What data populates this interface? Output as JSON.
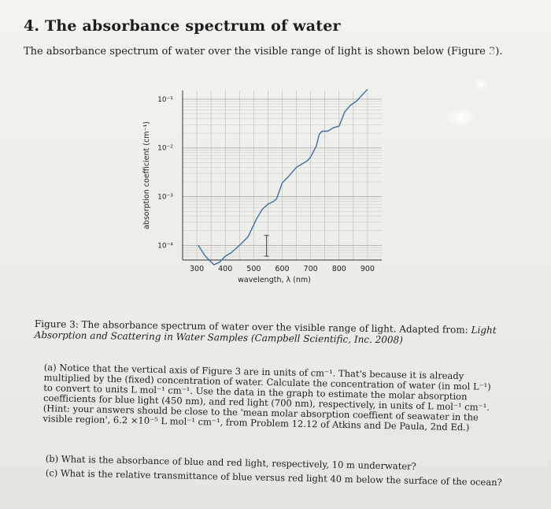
{
  "question": {
    "heading": "4. The absorbance spectrum of water",
    "intro": "The absorbance spectrum of water over the visible range of light is shown below (Figure 3)."
  },
  "chart_data": {
    "type": "line",
    "xlabel": "wavelength, λ (nm)",
    "ylabel": "absorption coefficient (cm⁻¹)",
    "yscale": "log",
    "xlim": [
      250,
      950
    ],
    "ylim": [
      5e-05,
      0.15
    ],
    "x_ticks": [
      300,
      400,
      500,
      600,
      700,
      800,
      900
    ],
    "x_tick_labels": [
      "300",
      "400",
      "500",
      "600",
      "700",
      "800",
      "900"
    ],
    "y_ticks": [
      0.0001,
      0.001,
      0.01,
      0.1
    ],
    "y_tick_labels": [
      "10⁻⁴",
      "10⁻³",
      "10⁻²",
      "10⁻¹"
    ],
    "grid": true,
    "series": [
      {
        "color": "#3d6fa0",
        "x": [
          305,
          330,
          360,
          380,
          400,
          420,
          450,
          480,
          510,
          530,
          550,
          570,
          580,
          600,
          620,
          650,
          690,
          700,
          720,
          730,
          740,
          760,
          780,
          800,
          820,
          840,
          860,
          900
        ],
        "y": [
          0.0001,
          6e-05,
          4e-05,
          4.5e-05,
          6e-05,
          7e-05,
          0.0001,
          0.00015,
          0.00035,
          0.00055,
          0.0007,
          0.0008,
          0.0009,
          0.0019,
          0.0025,
          0.004,
          0.0055,
          0.0065,
          0.011,
          0.019,
          0.022,
          0.022,
          0.026,
          0.028,
          0.055,
          0.075,
          0.09,
          0.16
        ]
      }
    ],
    "error_bar": {
      "x": 545,
      "y": 0.0001,
      "ylow": 6e-05,
      "yhigh": 0.00016
    }
  },
  "figure": {
    "caption_lead": "Figure 3: The absorbance spectrum of water over the visible range of light. Adapted from: ",
    "caption_source": "Light Absorption and Scattering in Water Samples (Campbell Scientific, Inc. 2008)"
  },
  "questions": {
    "a": "(a) Notice that the vertical axis of Figure 3 are in units of cm⁻¹. That's because it is already multiplied by the (fixed) concentration of water. Calculate the concentration of water (in mol L⁻¹) to convert to units L mol⁻¹ cm⁻¹. Use the data in the graph to estimate the molar absorption coefficients for blue light (450 nm), and red light (700 nm), respectively, in units of L mol⁻¹ cm⁻¹. (Hint: your answers should be close to the 'mean molar absorption coeffient of seawater in the visible region', 6.2 ×10⁻⁵ L mol⁻¹ cm⁻¹, from Problem 12.12 of Atkins and De Paula, 2nd Ed.)",
    "b": "(b) What is the absorbance of blue and red light, respectively, 10 m underwater?",
    "c": "(c) What is the relative transmittance of blue versus red light 40 m below the surface of the ocean?"
  }
}
